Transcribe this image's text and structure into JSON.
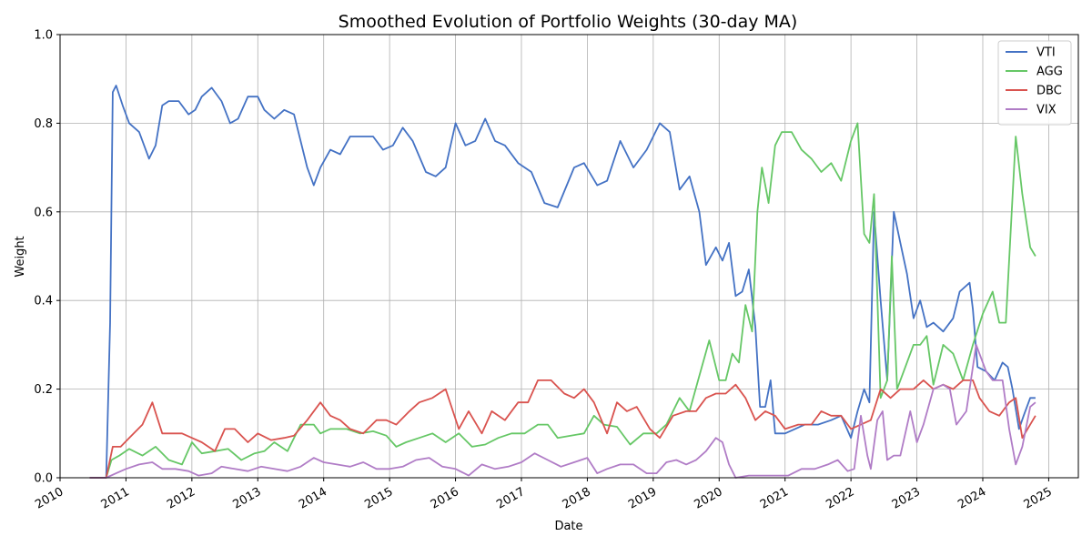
{
  "chart_data": {
    "type": "line",
    "title": "Smoothed Evolution of Portfolio Weights (30-day MA)",
    "xlabel": "Date",
    "ylabel": "Weight",
    "xlim": [
      2010.0,
      2025.45
    ],
    "ylim": [
      0,
      1
    ],
    "x_ticks": [
      2010,
      2011,
      2012,
      2013,
      2014,
      2015,
      2016,
      2017,
      2018,
      2019,
      2020,
      2021,
      2022,
      2023,
      2024,
      2025
    ],
    "x_tick_labels": [
      "2010",
      "2011",
      "2012",
      "2013",
      "2014",
      "2015",
      "2016",
      "2017",
      "2018",
      "2019",
      "2020",
      "2021",
      "2022",
      "2023",
      "2024",
      "2025"
    ],
    "y_ticks": [
      0.0,
      0.2,
      0.4,
      0.6,
      0.8,
      1.0
    ],
    "y_tick_labels": [
      "0.0",
      "0.2",
      "0.4",
      "0.6",
      "0.8",
      "1.0"
    ],
    "grid": true,
    "legend_position": "top-right",
    "series": [
      {
        "name": "VTI",
        "color": "#4472c4",
        "x": [
          2010.45,
          2010.65,
          2010.7,
          2010.76,
          2010.8,
          2010.85,
          2010.95,
          2011.05,
          2011.2,
          2011.35,
          2011.45,
          2011.55,
          2011.65,
          2011.8,
          2011.95,
          2012.05,
          2012.15,
          2012.3,
          2012.45,
          2012.58,
          2012.7,
          2012.85,
          2013.0,
          2013.1,
          2013.25,
          2013.4,
          2013.55,
          2013.75,
          2013.85,
          2013.95,
          2014.1,
          2014.25,
          2014.4,
          2014.55,
          2014.75,
          2014.9,
          2015.05,
          2015.2,
          2015.35,
          2015.55,
          2015.7,
          2015.85,
          2016.0,
          2016.15,
          2016.3,
          2016.45,
          2016.6,
          2016.75,
          2016.95,
          2017.15,
          2017.35,
          2017.55,
          2017.8,
          2017.95,
          2018.15,
          2018.3,
          2018.5,
          2018.7,
          2018.9,
          2019.1,
          2019.25,
          2019.4,
          2019.55,
          2019.7,
          2019.8,
          2019.95,
          2020.05,
          2020.15,
          2020.25,
          2020.35,
          2020.45,
          2020.55,
          2020.62,
          2020.7,
          2020.78,
          2020.85,
          2021.0,
          2021.15,
          2021.3,
          2021.5,
          2021.7,
          2021.85,
          2022.0,
          2022.1,
          2022.2,
          2022.28,
          2022.35,
          2022.45,
          2022.55,
          2022.65,
          2022.75,
          2022.85,
          2022.95,
          2023.05,
          2023.15,
          2023.25,
          2023.4,
          2023.55,
          2023.65,
          2023.8,
          2023.85,
          2023.92,
          2024.05,
          2024.18,
          2024.3,
          2024.38,
          2024.45,
          2024.55,
          2024.62,
          2024.72,
          2024.8
        ],
        "y": [
          0.0,
          0.0,
          0.0,
          0.35,
          0.87,
          0.885,
          0.84,
          0.8,
          0.78,
          0.72,
          0.75,
          0.84,
          0.85,
          0.85,
          0.82,
          0.83,
          0.86,
          0.88,
          0.85,
          0.8,
          0.81,
          0.86,
          0.86,
          0.83,
          0.81,
          0.83,
          0.82,
          0.7,
          0.66,
          0.7,
          0.74,
          0.73,
          0.77,
          0.77,
          0.77,
          0.74,
          0.75,
          0.79,
          0.76,
          0.69,
          0.68,
          0.7,
          0.8,
          0.75,
          0.76,
          0.81,
          0.76,
          0.75,
          0.71,
          0.69,
          0.62,
          0.61,
          0.7,
          0.71,
          0.66,
          0.67,
          0.76,
          0.7,
          0.74,
          0.8,
          0.78,
          0.65,
          0.68,
          0.6,
          0.48,
          0.52,
          0.49,
          0.53,
          0.41,
          0.42,
          0.47,
          0.34,
          0.16,
          0.16,
          0.22,
          0.1,
          0.1,
          0.11,
          0.12,
          0.12,
          0.13,
          0.14,
          0.09,
          0.15,
          0.2,
          0.17,
          0.6,
          0.4,
          0.22,
          0.6,
          0.53,
          0.46,
          0.36,
          0.4,
          0.34,
          0.35,
          0.33,
          0.36,
          0.42,
          0.44,
          0.38,
          0.25,
          0.24,
          0.22,
          0.26,
          0.25,
          0.2,
          0.11,
          0.14,
          0.18,
          0.18
        ]
      },
      {
        "name": "AGG",
        "color": "#66c766",
        "x": [
          2010.45,
          2010.65,
          2010.7,
          2010.78,
          2010.9,
          2011.05,
          2011.25,
          2011.45,
          2011.65,
          2011.85,
          2012.0,
          2012.15,
          2012.35,
          2012.55,
          2012.75,
          2012.95,
          2013.1,
          2013.25,
          2013.45,
          2013.65,
          2013.85,
          2013.95,
          2014.1,
          2014.35,
          2014.55,
          2014.75,
          2014.95,
          2015.1,
          2015.25,
          2015.45,
          2015.65,
          2015.85,
          2016.05,
          2016.25,
          2016.45,
          2016.65,
          2016.85,
          2017.05,
          2017.25,
          2017.4,
          2017.55,
          2017.75,
          2017.95,
          2018.1,
          2018.25,
          2018.45,
          2018.65,
          2018.85,
          2019.05,
          2019.2,
          2019.4,
          2019.55,
          2019.7,
          2019.85,
          2020.0,
          2020.1,
          2020.2,
          2020.3,
          2020.4,
          2020.5,
          2020.58,
          2020.65,
          2020.75,
          2020.85,
          2020.95,
          2021.1,
          2021.25,
          2021.4,
          2021.55,
          2021.7,
          2021.85,
          2022.0,
          2022.1,
          2022.2,
          2022.28,
          2022.35,
          2022.45,
          2022.55,
          2022.62,
          2022.7,
          2022.8,
          2022.95,
          2023.05,
          2023.15,
          2023.25,
          2023.4,
          2023.55,
          2023.7,
          2023.85,
          2024.0,
          2024.15,
          2024.25,
          2024.35,
          2024.5,
          2024.6,
          2024.72,
          2024.8
        ],
        "y": [
          0.0,
          0.0,
          0.0,
          0.04,
          0.05,
          0.065,
          0.05,
          0.07,
          0.04,
          0.03,
          0.08,
          0.055,
          0.06,
          0.065,
          0.04,
          0.055,
          0.06,
          0.08,
          0.06,
          0.12,
          0.12,
          0.1,
          0.11,
          0.11,
          0.1,
          0.105,
          0.095,
          0.07,
          0.08,
          0.09,
          0.1,
          0.08,
          0.1,
          0.07,
          0.075,
          0.09,
          0.1,
          0.1,
          0.12,
          0.12,
          0.09,
          0.095,
          0.1,
          0.14,
          0.12,
          0.115,
          0.075,
          0.1,
          0.1,
          0.12,
          0.18,
          0.15,
          0.23,
          0.31,
          0.22,
          0.22,
          0.28,
          0.26,
          0.39,
          0.33,
          0.6,
          0.7,
          0.62,
          0.75,
          0.78,
          0.78,
          0.74,
          0.72,
          0.69,
          0.71,
          0.67,
          0.76,
          0.8,
          0.55,
          0.53,
          0.64,
          0.18,
          0.22,
          0.5,
          0.2,
          0.24,
          0.3,
          0.3,
          0.32,
          0.21,
          0.3,
          0.28,
          0.22,
          0.3,
          0.37,
          0.42,
          0.35,
          0.35,
          0.77,
          0.64,
          0.52,
          0.5
        ]
      },
      {
        "name": "DBC",
        "color": "#d9534f",
        "x": [
          2010.45,
          2010.65,
          2010.7,
          2010.8,
          2010.92,
          2011.05,
          2011.25,
          2011.4,
          2011.55,
          2011.7,
          2011.85,
          2012.0,
          2012.15,
          2012.35,
          2012.5,
          2012.65,
          2012.85,
          2013.0,
          2013.2,
          2013.4,
          2013.55,
          2013.75,
          2013.95,
          2014.1,
          2014.25,
          2014.4,
          2014.6,
          2014.8,
          2014.95,
          2015.1,
          2015.3,
          2015.45,
          2015.65,
          2015.85,
          2016.05,
          2016.2,
          2016.4,
          2016.55,
          2016.75,
          2016.95,
          2017.1,
          2017.25,
          2017.45,
          2017.65,
          2017.8,
          2017.95,
          2018.1,
          2018.3,
          2018.45,
          2018.6,
          2018.75,
          2018.95,
          2019.1,
          2019.3,
          2019.5,
          2019.65,
          2019.8,
          2019.95,
          2020.1,
          2020.25,
          2020.4,
          2020.55,
          2020.7,
          2020.85,
          2021.0,
          2021.2,
          2021.4,
          2021.55,
          2021.7,
          2021.85,
          2022.0,
          2022.15,
          2022.3,
          2022.45,
          2022.6,
          2022.75,
          2022.95,
          2023.1,
          2023.25,
          2023.4,
          2023.55,
          2023.7,
          2023.85,
          2023.95,
          2024.1,
          2024.25,
          2024.4,
          2024.5,
          2024.6,
          2024.72,
          2024.8
        ],
        "y": [
          0.0,
          0.0,
          0.0,
          0.07,
          0.07,
          0.09,
          0.12,
          0.17,
          0.1,
          0.1,
          0.1,
          0.09,
          0.08,
          0.06,
          0.11,
          0.11,
          0.08,
          0.1,
          0.085,
          0.09,
          0.095,
          0.13,
          0.17,
          0.14,
          0.13,
          0.11,
          0.1,
          0.13,
          0.13,
          0.12,
          0.15,
          0.17,
          0.18,
          0.2,
          0.11,
          0.15,
          0.1,
          0.15,
          0.13,
          0.17,
          0.17,
          0.22,
          0.22,
          0.19,
          0.18,
          0.2,
          0.17,
          0.1,
          0.17,
          0.15,
          0.16,
          0.11,
          0.09,
          0.14,
          0.15,
          0.15,
          0.18,
          0.19,
          0.19,
          0.21,
          0.18,
          0.13,
          0.15,
          0.14,
          0.11,
          0.12,
          0.12,
          0.15,
          0.14,
          0.14,
          0.11,
          0.12,
          0.13,
          0.2,
          0.18,
          0.2,
          0.2,
          0.22,
          0.2,
          0.21,
          0.2,
          0.22,
          0.22,
          0.18,
          0.15,
          0.14,
          0.17,
          0.18,
          0.09,
          0.12,
          0.14
        ]
      },
      {
        "name": "VIX",
        "color": "#b07cc6",
        "x": [
          2010.45,
          2010.65,
          2010.7,
          2010.85,
          2011.0,
          2011.2,
          2011.4,
          2011.55,
          2011.75,
          2011.95,
          2012.1,
          2012.3,
          2012.45,
          2012.65,
          2012.85,
          2013.05,
          2013.25,
          2013.45,
          2013.65,
          2013.85,
          2014.0,
          2014.2,
          2014.4,
          2014.6,
          2014.8,
          2015.0,
          2015.2,
          2015.4,
          2015.6,
          2015.8,
          2016.0,
          2016.2,
          2016.4,
          2016.6,
          2016.8,
          2017.0,
          2017.2,
          2017.4,
          2017.6,
          2017.8,
          2018.0,
          2018.15,
          2018.3,
          2018.5,
          2018.7,
          2018.9,
          2019.05,
          2019.2,
          2019.35,
          2019.5,
          2019.65,
          2019.8,
          2019.95,
          2020.05,
          2020.15,
          2020.25,
          2020.45,
          2020.65,
          2020.85,
          2021.05,
          2021.25,
          2021.45,
          2021.65,
          2021.8,
          2021.95,
          2022.05,
          2022.15,
          2022.25,
          2022.3,
          2022.4,
          2022.48,
          2022.55,
          2022.65,
          2022.75,
          2022.9,
          2023.0,
          2023.1,
          2023.25,
          2023.4,
          2023.5,
          2023.6,
          2023.75,
          2023.9,
          2024.05,
          2024.15,
          2024.3,
          2024.4,
          2024.5,
          2024.6,
          2024.72,
          2024.8
        ],
        "y": [
          0.0,
          0.0,
          0.0,
          0.01,
          0.02,
          0.03,
          0.035,
          0.02,
          0.02,
          0.015,
          0.005,
          0.01,
          0.025,
          0.02,
          0.015,
          0.025,
          0.02,
          0.015,
          0.025,
          0.045,
          0.035,
          0.03,
          0.025,
          0.035,
          0.02,
          0.02,
          0.025,
          0.04,
          0.045,
          0.025,
          0.02,
          0.005,
          0.03,
          0.02,
          0.025,
          0.035,
          0.055,
          0.04,
          0.025,
          0.035,
          0.045,
          0.01,
          0.02,
          0.03,
          0.03,
          0.01,
          0.01,
          0.035,
          0.04,
          0.03,
          0.04,
          0.06,
          0.09,
          0.08,
          0.03,
          0.0,
          0.005,
          0.005,
          0.005,
          0.005,
          0.02,
          0.02,
          0.03,
          0.04,
          0.015,
          0.02,
          0.14,
          0.05,
          0.02,
          0.13,
          0.15,
          0.04,
          0.05,
          0.05,
          0.15,
          0.08,
          0.12,
          0.2,
          0.21,
          0.2,
          0.12,
          0.15,
          0.3,
          0.24,
          0.22,
          0.22,
          0.11,
          0.03,
          0.07,
          0.16,
          0.17
        ]
      }
    ]
  }
}
